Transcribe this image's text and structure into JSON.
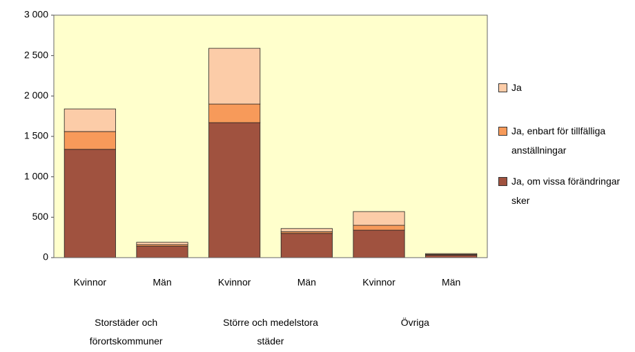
{
  "chart_data": {
    "type": "bar",
    "stacked": true,
    "categories": [
      "Kvinnor",
      "Män",
      "Kvinnor",
      "Män",
      "Kvinnor",
      "Män"
    ],
    "groups": [
      "Storstäder och förortskommuner",
      "Större och medelstora städer",
      "Övriga"
    ],
    "series": [
      {
        "name": "Ja, om vissa förändringar sker",
        "color": "#a0523f",
        "values": [
          1340,
          140,
          1670,
          300,
          340,
          30
        ]
      },
      {
        "name": "Ja, enbart för tillfälliga anställningar",
        "color": "#f79a5a",
        "values": [
          220,
          20,
          230,
          20,
          60,
          10
        ]
      },
      {
        "name": "Ja",
        "color": "#fccca8",
        "values": [
          280,
          30,
          690,
          40,
          170,
          10
        ]
      }
    ],
    "ylim": [
      0,
      3000
    ],
    "yticks": [
      0,
      500,
      {
        "value": 1000,
        "label": "1 000"
      },
      {
        "value": 1500,
        "label": "1 500"
      },
      {
        "value": 2000,
        "label": "2 000"
      },
      {
        "value": 2500,
        "label": "2 500"
      },
      {
        "value": 3000,
        "label": "3 000"
      }
    ],
    "background": "#ffffcc"
  }
}
